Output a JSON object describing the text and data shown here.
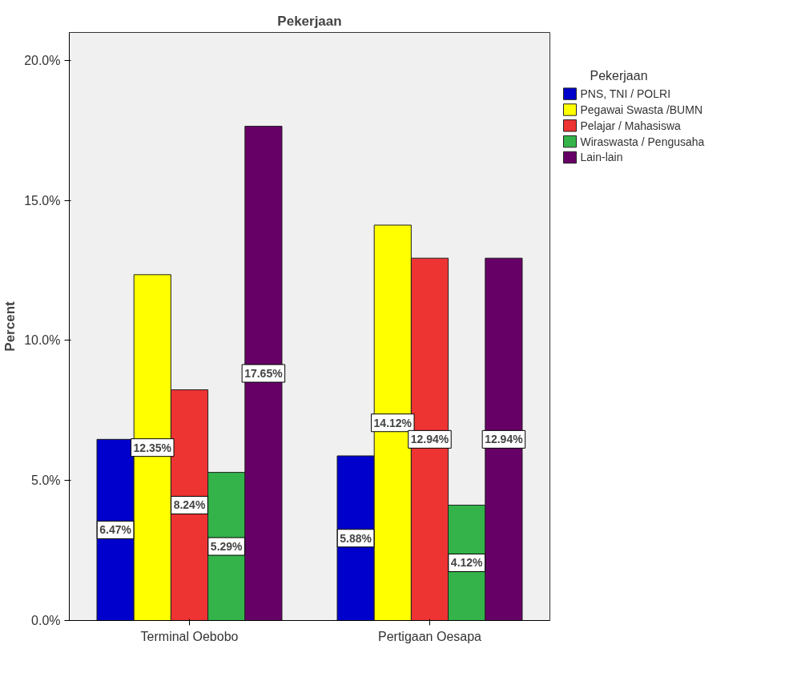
{
  "chart_data": {
    "type": "bar",
    "title": "Pekerjaan",
    "ylabel": "Percent",
    "legend_title": "Pekerjaan",
    "categories": [
      "Terminal Oebobo",
      "Pertigaan Oesapa"
    ],
    "series": [
      {
        "name": "PNS, TNI / POLRI",
        "color": "#0000cc",
        "values": [
          6.47,
          5.88
        ],
        "value_labels": [
          "6.47%",
          "5.88%"
        ]
      },
      {
        "name": "Pegawai Swasta /BUMN",
        "color": "#ffff00",
        "values": [
          12.35,
          14.12
        ],
        "value_labels": [
          "12.35%",
          "14.12%"
        ]
      },
      {
        "name": "Pelajar / Mahasiswa",
        "color": "#ee3333",
        "values": [
          8.24,
          12.94
        ],
        "value_labels": [
          "8.24%",
          "12.94%"
        ]
      },
      {
        "name": "Wiraswasta / Pengusaha",
        "color": "#33b34a",
        "values": [
          5.29,
          4.12
        ],
        "value_labels": [
          "5.29%",
          "4.12%"
        ]
      },
      {
        "name": "Lain-lain",
        "color": "#660066",
        "values": [
          17.65,
          12.94
        ],
        "value_labels": [
          "17.65%",
          "12.94%"
        ]
      }
    ],
    "ylim": [
      0,
      21
    ],
    "yticks": [
      {
        "value": 0,
        "label": "0.0%"
      },
      {
        "value": 5,
        "label": "5.0%"
      },
      {
        "value": 10,
        "label": "10.0%"
      },
      {
        "value": 15,
        "label": "15.0%"
      },
      {
        "value": 20,
        "label": "20.0%"
      }
    ],
    "grid": false,
    "legend": "right"
  }
}
